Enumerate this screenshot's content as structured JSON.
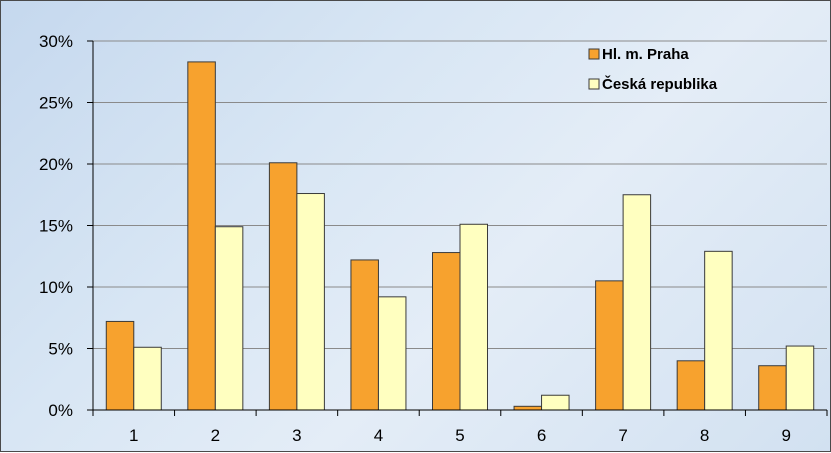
{
  "chart_data": {
    "type": "bar",
    "title": "",
    "xlabel": "",
    "ylabel": "",
    "categories": [
      "1",
      "2",
      "3",
      "4",
      "5",
      "6",
      "7",
      "8",
      "9"
    ],
    "series": [
      {
        "name": "Hl. m. Praha",
        "color": "#f7a22e",
        "values": [
          7.2,
          28.3,
          20.1,
          12.2,
          12.8,
          0.3,
          10.5,
          4.0,
          3.6
        ]
      },
      {
        "name": "Česká republika",
        "color": "#ffffc0",
        "values": [
          5.1,
          14.9,
          17.6,
          9.2,
          15.1,
          1.2,
          17.5,
          12.9,
          5.2
        ]
      }
    ],
    "ylim": [
      0,
      30
    ],
    "yticks": [
      0,
      5,
      10,
      15,
      20,
      25,
      30
    ],
    "ytick_labels": [
      "0%",
      "5%",
      "10%",
      "15%",
      "20%",
      "25%",
      "30%"
    ],
    "grid": true,
    "legend_position": "top-right"
  }
}
